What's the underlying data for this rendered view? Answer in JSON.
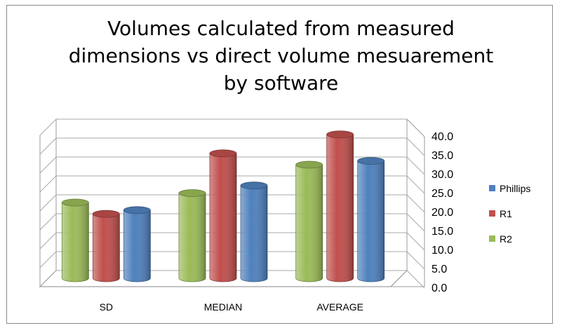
{
  "chart_data": {
    "type": "bar",
    "title": [
      "Volumes calculated from measured",
      "dimensions vs direct volume mesuarement",
      "by software"
    ],
    "categories": [
      "SD",
      "MEDIAN",
      "AVERAGE"
    ],
    "series": [
      {
        "name": "R2",
        "values": [
          20.0,
          22.5,
          30.0
        ],
        "color": "#9bbb59"
      },
      {
        "name": "R1",
        "values": [
          17.0,
          33.0,
          38.0
        ],
        "color": "#c0504d"
      },
      {
        "name": "Phillips",
        "values": [
          18.0,
          24.5,
          31.0
        ],
        "color": "#4f81bd"
      }
    ],
    "legend_order": [
      "Phillips",
      "R1",
      "R2"
    ],
    "y_ticks": [
      "0.0",
      "5.0",
      "10.0",
      "15.0",
      "20.0",
      "25.0",
      "30.0",
      "35.0",
      "40.0"
    ],
    "ylim": [
      0,
      40
    ],
    "grid": true,
    "legend_position": "right",
    "style": "3d-cylinder"
  }
}
